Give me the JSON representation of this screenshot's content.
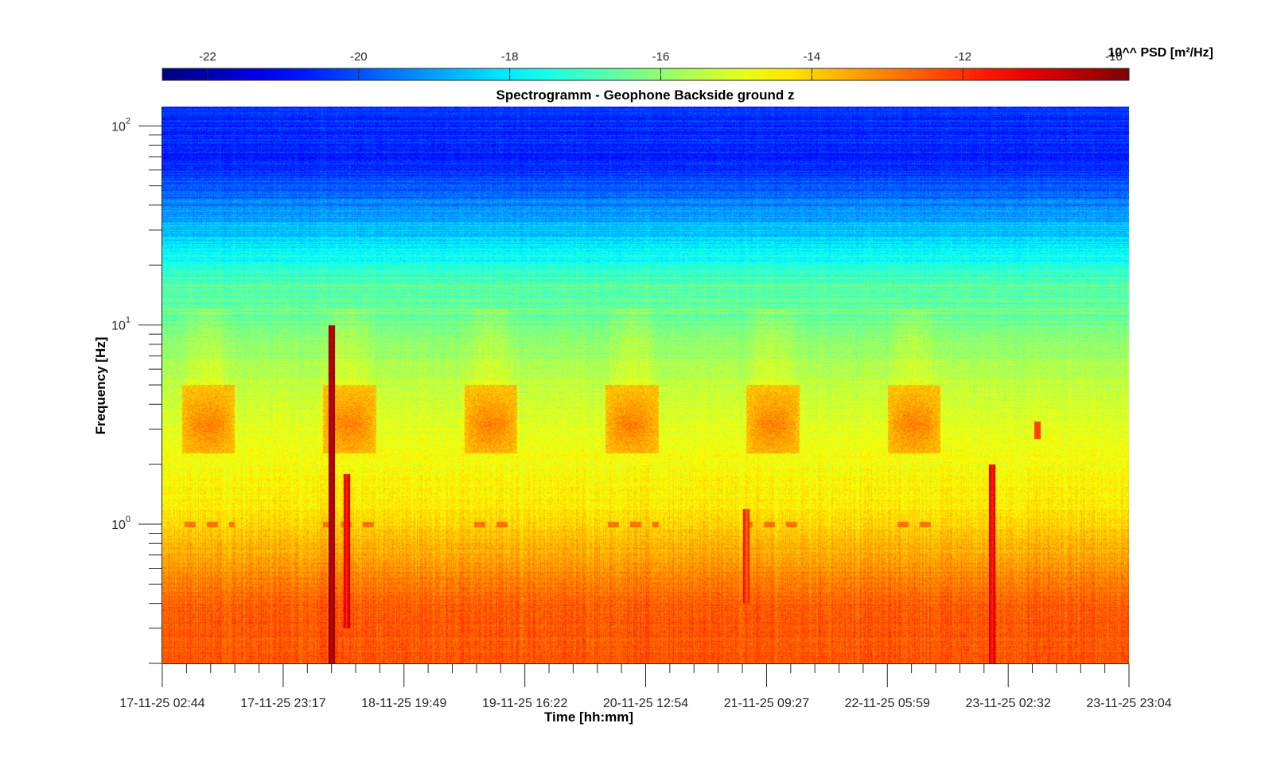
{
  "chart_data": {
    "type": "heatmap",
    "title": "Spectrogramm - Geophone Backside ground z",
    "xlabel": "Time [hh:mm]",
    "ylabel": "Frequency [Hz]",
    "x_scale": "time",
    "y_scale": "log",
    "ylim": [
      0.2,
      125
    ],
    "xlim": [
      "17-11-25 02:44",
      "23-11-25 23:04"
    ],
    "x_tick_labels": [
      "17-11-25 02:44",
      "17-11-25 23:17",
      "18-11-25 19:49",
      "19-11-25 16:22",
      "20-11-25 12:54",
      "21-11-25 09:27",
      "22-11-25 05:59",
      "23-11-25 02:32",
      "23-11-25 23:04"
    ],
    "y_tick_labels": [
      {
        "value": 1,
        "base": "10",
        "exp": "0"
      },
      {
        "value": 10,
        "base": "10",
        "exp": "1"
      },
      {
        "value": 100,
        "base": "10",
        "exp": "2"
      }
    ],
    "colorbar": {
      "label": "10^^ PSD [m²/Hz]",
      "range": [
        -22.6,
        -9.8
      ],
      "ticks": [
        "-22",
        "-20",
        "-18",
        "-16",
        "-14",
        "-12",
        "-10"
      ],
      "tick_values": [
        -22,
        -20,
        -18,
        -16,
        -14,
        -12,
        -10
      ],
      "colormap": "jet",
      "position": "top"
    },
    "features": [
      {
        "kind": "frequency_band",
        "freq_hz_range": [
          0.2,
          0.7
        ],
        "log_psd": -12.5
      },
      {
        "kind": "frequency_band",
        "freq_hz_range": [
          0.7,
          2.0
        ],
        "log_psd": -14.3
      },
      {
        "kind": "frequency_band",
        "freq_hz_range": [
          2.0,
          10.0
        ],
        "log_psd": -15.2
      },
      {
        "kind": "frequency_band",
        "freq_hz_range": [
          10.0,
          30.0
        ],
        "log_psd": -17.0
      },
      {
        "kind": "frequency_band",
        "freq_hz_range": [
          30.0,
          125.0
        ],
        "log_psd": -20.5
      },
      {
        "kind": "daily_activity_band",
        "freq_hz_range": [
          2.5,
          4.0
        ],
        "log_psd": -13.0,
        "periods": [
          [
            "17-11-25 06:00",
            "17-11-25 15:00"
          ],
          [
            "18-11-25 06:00",
            "18-11-25 15:00"
          ],
          [
            "19-11-25 06:00",
            "19-11-25 15:00"
          ],
          [
            "20-11-25 06:00",
            "20-11-25 15:00"
          ],
          [
            "21-11-25 06:00",
            "21-11-25 15:00"
          ],
          [
            "22-11-25 06:00",
            "22-11-25 15:00"
          ]
        ]
      },
      {
        "kind": "line_1hz",
        "freq_hz": 1.0,
        "log_psd": -12.8
      },
      {
        "kind": "transient",
        "time": "18-11-25 07:30",
        "freq_hz_range": [
          0.2,
          10.0
        ],
        "log_psd": -11.0
      },
      {
        "kind": "transient",
        "time": "18-11-25 10:00",
        "freq_hz_range": [
          0.3,
          1.8
        ],
        "log_psd": -12.0
      },
      {
        "kind": "transient",
        "time": "21-11-25 06:00",
        "freq_hz_range": [
          0.4,
          1.2
        ],
        "log_psd": -12.8
      },
      {
        "kind": "transient",
        "time": "22-11-25 23:45",
        "freq_hz_range": [
          0.2,
          2.0
        ],
        "log_psd": -12.0
      },
      {
        "kind": "spot",
        "time": "23-11-25 07:30",
        "freq_hz_range": [
          2.7,
          3.3
        ],
        "log_psd": -12.2
      }
    ],
    "grid": false
  }
}
